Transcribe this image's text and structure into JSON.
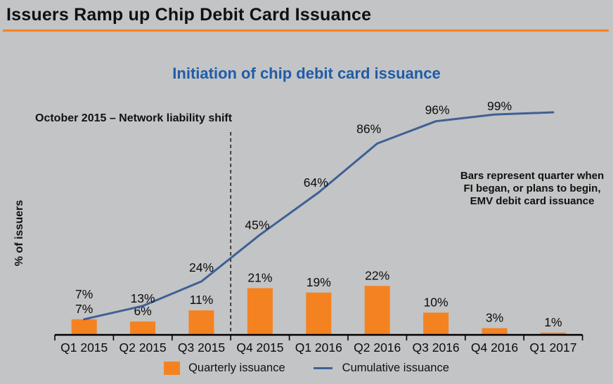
{
  "page": {
    "title": "Issuers Ramp up Chip Debit Card Issuance",
    "accent_color": "#F58220",
    "background_color": "#C3C4C5"
  },
  "chart_data": {
    "type": "bar",
    "combo": "bar + line",
    "title": "Initiation of chip debit card issuance",
    "title_color": "#1F5CA8",
    "ylabel": "% of issuers",
    "ylim": [
      0,
      100
    ],
    "grid": false,
    "legend_position": "bottom",
    "categories": [
      "Q1 2015",
      "Q2 2015",
      "Q3 2015",
      "Q4 2015",
      "Q1 2016",
      "Q2 2016",
      "Q3 2016",
      "Q4 2016",
      "Q1 2017"
    ],
    "series": [
      {
        "name": "Quarterly issuance",
        "type": "bar",
        "color": "#F58220",
        "values": [
          7,
          6,
          11,
          21,
          19,
          22,
          10,
          3,
          1
        ],
        "labels": [
          "7%",
          "6%",
          "11%",
          "21%",
          "19%",
          "22%",
          "10%",
          "3%",
          "1%"
        ]
      },
      {
        "name": "Cumulative issuance",
        "type": "line",
        "color": "#3E6095",
        "values": [
          7,
          13,
          24,
          45,
          64,
          86,
          96,
          99,
          100
        ],
        "labels": [
          "7%",
          "13%",
          "24%",
          "45%",
          "64%",
          "86%",
          "96%",
          "99%",
          ""
        ]
      }
    ],
    "annotations": {
      "liability_shift": {
        "text": "October 2015 – Network liability shift",
        "line_style": "dashed-vertical",
        "position_between": [
          "Q3 2015",
          "Q4 2015"
        ]
      },
      "bars_note": {
        "lines": [
          "Bars represent quarter when",
          "FI began, or plans to begin,",
          "EMV debit card issuance"
        ]
      }
    },
    "legend": [
      {
        "label": "Quarterly issuance",
        "swatch": "bar",
        "color": "#F58220"
      },
      {
        "label": "Cumulative issuance",
        "swatch": "line",
        "color": "#3E6095"
      }
    ]
  }
}
